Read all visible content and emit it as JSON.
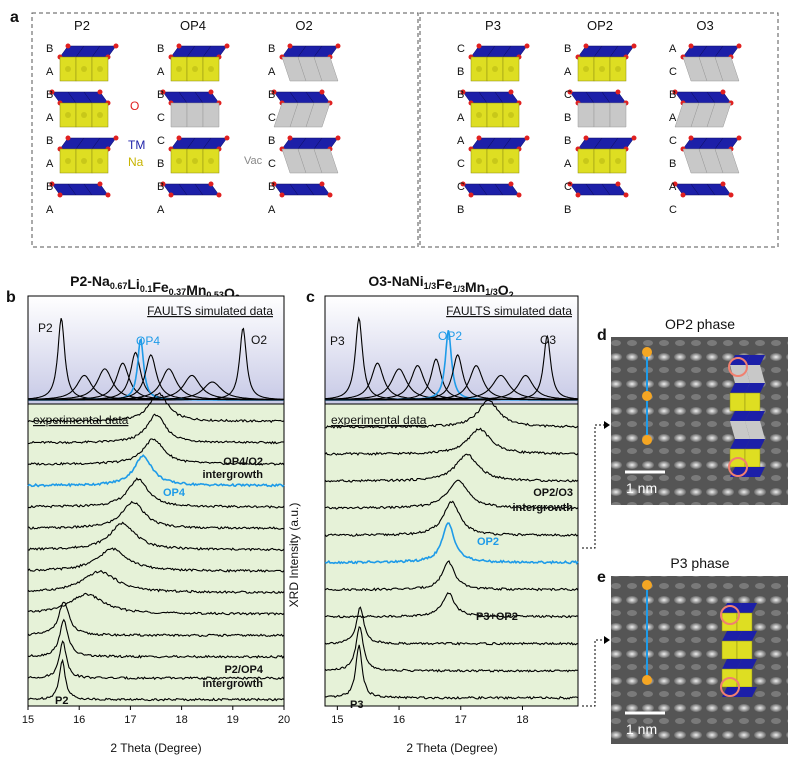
{
  "panel_a": {
    "label": "a",
    "structures": [
      {
        "name": "P2",
        "stack": [
          "B",
          "A",
          "B",
          "A",
          "B",
          "A",
          "B",
          "A"
        ]
      },
      {
        "name": "OP4",
        "stack": [
          "B",
          "A",
          "B",
          "C",
          "C",
          "B",
          "B",
          "A"
        ]
      },
      {
        "name": "O2",
        "stack": [
          "B",
          "A",
          "B",
          "C",
          "B",
          "C",
          "B",
          "A"
        ]
      },
      {
        "name": "P3",
        "stack": [
          "C",
          "B",
          "B",
          "A",
          "A",
          "C",
          "C",
          "B"
        ]
      },
      {
        "name": "OP2",
        "stack": [
          "B",
          "A",
          "C",
          "B",
          "B",
          "A",
          "C",
          "B"
        ]
      },
      {
        "name": "O3",
        "stack": [
          "A",
          "C",
          "B",
          "A",
          "C",
          "B",
          "A",
          "C"
        ]
      }
    ],
    "legend": {
      "oxygen": "O",
      "tm": "TM",
      "sodium": "Na",
      "vacancy": "Vac"
    }
  },
  "panel_b": {
    "label": "b",
    "title_parts": [
      {
        "t": "P2-Na",
        "sub": false
      },
      {
        "t": "0.67",
        "sub": true
      },
      {
        "t": "Li",
        "sub": false
      },
      {
        "t": "0.1",
        "sub": true
      },
      {
        "t": "Fe",
        "sub": false
      },
      {
        "t": "0.37",
        "sub": true
      },
      {
        "t": "Mn",
        "sub": false
      },
      {
        "t": "0.53",
        "sub": true
      },
      {
        "t": "O",
        "sub": false
      },
      {
        "t": "2",
        "sub": true
      }
    ],
    "sim_label": "FAULTS simulated data",
    "exp_label": "experimental data",
    "peak_labels": [
      "P2",
      "OP4",
      "O2"
    ],
    "annotations": [
      "OP4/O2",
      "intergrowth",
      "OP4",
      "P2/OP4",
      "intergrowth",
      "P2"
    ],
    "xlabel": "2 Theta (Degree)"
  },
  "panel_c": {
    "label": "c",
    "title_parts": [
      {
        "t": "O3-NaNi",
        "sub": false
      },
      {
        "t": "1/3",
        "sub": true
      },
      {
        "t": "Fe",
        "sub": false
      },
      {
        "t": "1/3",
        "sub": true
      },
      {
        "t": "Mn",
        "sub": false
      },
      {
        "t": "1/3",
        "sub": true
      },
      {
        "t": "O",
        "sub": false
      },
      {
        "t": "2",
        "sub": true
      }
    ],
    "sim_label": "FAULTS simulated data",
    "exp_label": "experimental data",
    "peak_labels": [
      "P3",
      "OP2",
      "O3"
    ],
    "annotations": [
      "OP2/O3",
      "intergrowth",
      "OP2",
      "P3+OP2",
      "P3"
    ],
    "xlabel": "2 Theta (Degree)"
  },
  "y_axis_label": "XRD Intensity (a.u.)",
  "panel_d": {
    "label": "d",
    "title": "OP2 phase",
    "scale": "1 nm"
  },
  "panel_e": {
    "label": "e",
    "title": "P3 phase",
    "scale": "1 nm"
  },
  "colors": {
    "tm_blue": "#1c1fa8",
    "na_yellow": "#dede22",
    "vac_gray": "#c8c8c8",
    "oxygen_red": "#e02020",
    "highlight_blue": "#1e9be8",
    "exp_bg": "#e6f2d8",
    "sim_bg_top": "#ffffff",
    "sim_bg_bottom": "#c7c9e6",
    "stem_bg": "#5a5a5a",
    "marker_orange": "#f5a623"
  },
  "chart_data": [
    {
      "id": "b",
      "type": "line",
      "title": "P2-Na0.67Li0.1Fe0.37Mn0.53O2",
      "xlabel": "2 Theta (Degree)",
      "ylabel": "XRD Intensity (a.u.)",
      "xlim": [
        15,
        20
      ],
      "xticks": [
        15,
        16,
        17,
        18,
        19,
        20
      ],
      "simulated": [
        {
          "name": "P2",
          "center": 15.65,
          "height": 1.0,
          "width": 0.08,
          "color": "#000000"
        },
        {
          "name": "sim2",
          "center": 16.1,
          "height": 0.3,
          "width": 0.18,
          "color": "#000000"
        },
        {
          "name": "sim3",
          "center": 16.5,
          "height": 0.38,
          "width": 0.18,
          "color": "#000000"
        },
        {
          "name": "sim4",
          "center": 16.85,
          "height": 0.45,
          "width": 0.15,
          "color": "#000000"
        },
        {
          "name": "sim5",
          "center": 17.1,
          "height": 0.58,
          "width": 0.12,
          "color": "#000000"
        },
        {
          "name": "OP4",
          "center": 17.2,
          "height": 0.75,
          "width": 0.07,
          "color": "#1e9be8"
        },
        {
          "name": "sim7",
          "center": 17.4,
          "height": 0.55,
          "width": 0.13,
          "color": "#000000"
        },
        {
          "name": "sim8",
          "center": 17.75,
          "height": 0.38,
          "width": 0.18,
          "color": "#000000"
        },
        {
          "name": "sim9",
          "center": 18.2,
          "height": 0.3,
          "width": 0.2,
          "color": "#000000"
        },
        {
          "name": "sim10",
          "center": 18.6,
          "height": 0.22,
          "width": 0.22,
          "color": "#000000"
        },
        {
          "name": "O2",
          "center": 19.2,
          "height": 0.88,
          "width": 0.08,
          "color": "#000000"
        }
      ],
      "experimental": [
        {
          "center": 17.55,
          "height": 1.0,
          "width": 0.22,
          "color": "#000000"
        },
        {
          "center": 17.5,
          "height": 1.0,
          "width": 0.22,
          "color": "#000000"
        },
        {
          "center": 17.45,
          "height": 0.9,
          "width": 0.24,
          "color": "#000000"
        },
        {
          "center": 17.25,
          "height": 1.05,
          "width": 0.22,
          "color": "#1e9be8"
        },
        {
          "center": 17.15,
          "height": 1.0,
          "width": 0.24,
          "color": "#000000"
        },
        {
          "center": 17.05,
          "height": 0.95,
          "width": 0.26,
          "color": "#000000"
        },
        {
          "center": 16.85,
          "height": 0.95,
          "width": 0.3,
          "color": "#000000"
        },
        {
          "center": 16.65,
          "height": 0.8,
          "width": 0.35,
          "color": "#000000"
        },
        {
          "center": 16.4,
          "height": 0.75,
          "width": 0.4,
          "color": "#000000"
        },
        {
          "center": 16.15,
          "height": 0.7,
          "width": 0.4,
          "color": "#000000"
        },
        {
          "center": 15.7,
          "height": 1.2,
          "width": 0.12,
          "color": "#000000"
        },
        {
          "center": 15.7,
          "height": 1.3,
          "width": 0.1,
          "color": "#000000"
        },
        {
          "center": 15.68,
          "height": 1.35,
          "width": 0.08,
          "color": "#000000"
        },
        {
          "center": 15.67,
          "height": 1.4,
          "width": 0.07,
          "color": "#000000"
        }
      ]
    },
    {
      "id": "c",
      "type": "line",
      "title": "O3-NaNi1/3Fe1/3Mn1/3O2",
      "xlabel": "2 Theta (Degree)",
      "ylabel": "XRD Intensity (a.u.)",
      "xlim": [
        14.8,
        18.9
      ],
      "xticks": [
        15,
        16,
        17,
        18
      ],
      "simulated": [
        {
          "name": "P3",
          "center": 15.35,
          "height": 1.0,
          "width": 0.07,
          "color": "#000000"
        },
        {
          "name": "sim2",
          "center": 15.65,
          "height": 0.45,
          "width": 0.12,
          "color": "#000000"
        },
        {
          "name": "sim3",
          "center": 16.0,
          "height": 0.38,
          "width": 0.15,
          "color": "#000000"
        },
        {
          "name": "sim4",
          "center": 16.3,
          "height": 0.42,
          "width": 0.13,
          "color": "#000000"
        },
        {
          "name": "sim5",
          "center": 16.6,
          "height": 0.5,
          "width": 0.1,
          "color": "#000000"
        },
        {
          "name": "OP2",
          "center": 16.8,
          "height": 0.85,
          "width": 0.06,
          "color": "#1e9be8"
        },
        {
          "name": "sim7",
          "center": 16.95,
          "height": 0.55,
          "width": 0.1,
          "color": "#000000"
        },
        {
          "name": "sim8",
          "center": 17.25,
          "height": 0.42,
          "width": 0.13,
          "color": "#000000"
        },
        {
          "name": "sim9",
          "center": 17.65,
          "height": 0.3,
          "width": 0.17,
          "color": "#000000"
        },
        {
          "name": "sim10",
          "center": 18.05,
          "height": 0.3,
          "width": 0.15,
          "color": "#000000"
        },
        {
          "name": "O3",
          "center": 18.4,
          "height": 0.78,
          "width": 0.07,
          "color": "#000000"
        }
      ],
      "experimental": [
        {
          "center": 17.45,
          "height": 0.95,
          "width": 0.2,
          "color": "#000000"
        },
        {
          "center": 17.3,
          "height": 0.9,
          "width": 0.22,
          "color": "#000000"
        },
        {
          "center": 17.1,
          "height": 0.95,
          "width": 0.22,
          "color": "#000000"
        },
        {
          "center": 16.95,
          "height": 1.0,
          "width": 0.2,
          "color": "#000000"
        },
        {
          "center": 16.85,
          "height": 1.2,
          "width": 0.16,
          "color": "#000000"
        },
        {
          "center": 16.8,
          "height": 1.4,
          "width": 0.12,
          "color": "#1e9be8"
        },
        {
          "center": 16.8,
          "height": 1.0,
          "width": 0.12,
          "color": "#000000"
        },
        {
          "center": 16.8,
          "height": 0.85,
          "width": 0.12,
          "color": "#000000"
        },
        {
          "center": 15.37,
          "height": 1.3,
          "width": 0.07,
          "color": "#000000"
        },
        {
          "center": 15.36,
          "height": 1.6,
          "width": 0.07,
          "color": "#000000"
        },
        {
          "center": 15.35,
          "height": 1.9,
          "width": 0.06,
          "color": "#000000"
        }
      ]
    }
  ]
}
